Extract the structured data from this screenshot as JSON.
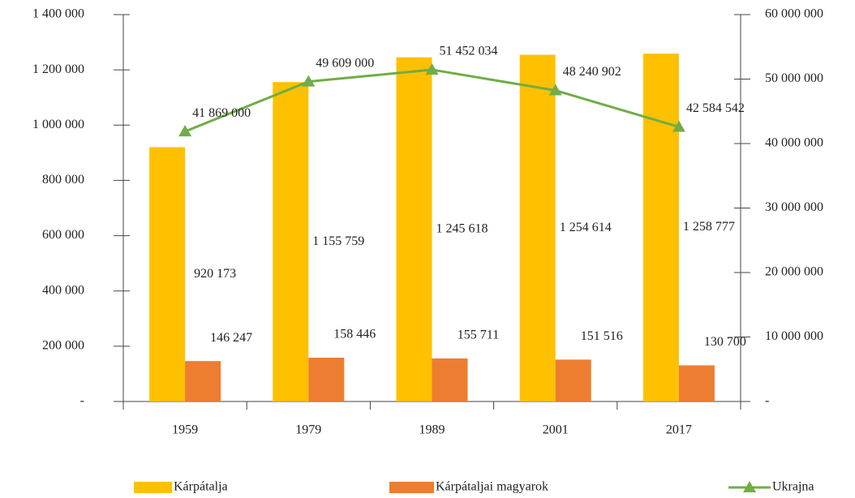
{
  "chart_data": {
    "type": "bar",
    "categories": [
      "1959",
      "1979",
      "1989",
      "2001",
      "2017"
    ],
    "series": [
      {
        "name": "Kárpátalja",
        "color": "#ffc000",
        "values": [
          920173,
          1155759,
          1245618,
          1254614,
          1258777
        ],
        "value_labels": [
          "920 173",
          "1 155 759",
          "1 245 618",
          "1 254 614",
          "1 258 777"
        ]
      },
      {
        "name": "Kárpátaljai magyarok",
        "color": "#ed7d31",
        "values": [
          146247,
          158446,
          155711,
          151516,
          130700
        ],
        "value_labels": [
          "146 247",
          "158 446",
          "155 711",
          "151 516",
          "130 700"
        ]
      },
      {
        "name": "Ukrajna",
        "color": "#70ad47",
        "type": "line",
        "axis": "y2",
        "values": [
          41869000,
          49609000,
          51452034,
          48240902,
          42584542
        ],
        "value_labels": [
          "41 869 000",
          "49 609 000",
          "51 452 034",
          "48 240 902",
          "42 584 542"
        ]
      }
    ],
    "ylim": [
      0,
      1400000
    ],
    "yticks": [
      {
        "value": 0,
        "label": "-"
      },
      {
        "value": 200000,
        "label": "200 000"
      },
      {
        "value": 400000,
        "label": "400 000"
      },
      {
        "value": 600000,
        "label": "600 000"
      },
      {
        "value": 800000,
        "label": "800 000"
      },
      {
        "value": 1000000,
        "label": "1 000 000"
      },
      {
        "value": 1200000,
        "label": "1 200 000"
      },
      {
        "value": 1400000,
        "label": "1 400 000"
      }
    ],
    "y2lim": [
      0,
      60000000
    ],
    "y2ticks": [
      {
        "value": 0,
        "label": "-"
      },
      {
        "value": 10000000,
        "label": "10 000 000"
      },
      {
        "value": 20000000,
        "label": "20 000 000"
      },
      {
        "value": 30000000,
        "label": "30 000 000"
      },
      {
        "value": 40000000,
        "label": "40 000 000"
      },
      {
        "value": 50000000,
        "label": "50 000 000"
      },
      {
        "value": 60000000,
        "label": "60 000 000"
      }
    ],
    "legend": "bottom"
  }
}
